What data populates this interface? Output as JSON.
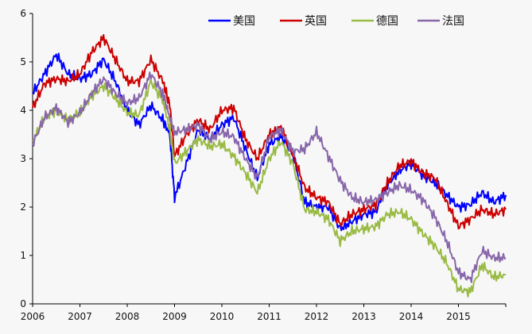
{
  "chart_data": {
    "type": "line",
    "title": "",
    "xlabel": "",
    "ylabel": "",
    "xlim": [
      2006.0,
      2016.0
    ],
    "ylim": [
      0,
      6
    ],
    "grid": false,
    "legend_position": "top-right",
    "x_ticks": [
      "2006",
      "2007",
      "2008",
      "2009",
      "2010",
      "2011",
      "2012",
      "2013",
      "2014",
      "2015"
    ],
    "y_ticks": [
      "0",
      "1",
      "2",
      "3",
      "4",
      "5",
      "6"
    ],
    "x": [
      2006.0,
      2006.25,
      2006.5,
      2006.75,
      2007.0,
      2007.25,
      2007.5,
      2007.75,
      2008.0,
      2008.25,
      2008.5,
      2008.75,
      2008.9,
      2009.0,
      2009.25,
      2009.5,
      2009.75,
      2010.0,
      2010.25,
      2010.5,
      2010.75,
      2011.0,
      2011.25,
      2011.5,
      2011.75,
      2012.0,
      2012.25,
      2012.5,
      2012.75,
      2013.0,
      2013.25,
      2013.5,
      2013.75,
      2014.0,
      2014.25,
      2014.5,
      2014.75,
      2015.0,
      2015.25,
      2015.5,
      2015.75,
      2016.0
    ],
    "series": [
      {
        "name": "美国",
        "color": "#0000ff",
        "values": [
          4.35,
          4.75,
          5.15,
          4.75,
          4.65,
          4.75,
          5.05,
          4.6,
          4.0,
          3.7,
          4.1,
          3.8,
          3.5,
          2.2,
          2.9,
          3.6,
          3.4,
          3.7,
          3.85,
          3.2,
          2.6,
          3.3,
          3.45,
          3.1,
          2.1,
          2.0,
          2.0,
          1.55,
          1.7,
          1.85,
          1.9,
          2.45,
          2.75,
          2.9,
          2.65,
          2.5,
          2.25,
          2.0,
          2.05,
          2.3,
          2.1,
          2.25
        ]
      },
      {
        "name": "英国",
        "color": "#cc0000",
        "values": [
          4.05,
          4.55,
          4.65,
          4.6,
          4.75,
          5.2,
          5.5,
          5.05,
          4.6,
          4.6,
          5.05,
          4.6,
          4.1,
          3.05,
          3.5,
          3.8,
          3.6,
          4.0,
          4.05,
          3.4,
          3.0,
          3.5,
          3.65,
          3.1,
          2.4,
          2.2,
          2.1,
          1.65,
          1.85,
          1.95,
          2.05,
          2.5,
          2.85,
          2.95,
          2.7,
          2.6,
          2.1,
          1.6,
          1.75,
          1.95,
          1.85,
          1.95
        ]
      },
      {
        "name": "德国",
        "color": "#99bb44",
        "values": [
          3.35,
          3.85,
          4.0,
          3.8,
          3.95,
          4.3,
          4.5,
          4.25,
          3.95,
          3.9,
          4.6,
          4.2,
          3.6,
          2.9,
          3.15,
          3.4,
          3.25,
          3.3,
          3.05,
          2.7,
          2.3,
          3.0,
          3.35,
          2.9,
          1.95,
          1.9,
          1.75,
          1.3,
          1.5,
          1.55,
          1.6,
          1.85,
          1.9,
          1.75,
          1.45,
          1.2,
          0.85,
          0.3,
          0.25,
          0.8,
          0.55,
          0.6
        ]
      },
      {
        "name": "法国",
        "color": "#8866aa",
        "values": [
          3.3,
          3.85,
          4.05,
          3.75,
          3.95,
          4.35,
          4.65,
          4.35,
          4.15,
          4.25,
          4.75,
          4.35,
          3.85,
          3.55,
          3.6,
          3.7,
          3.4,
          3.55,
          3.45,
          3.0,
          2.6,
          3.45,
          3.6,
          3.15,
          3.2,
          3.55,
          3.05,
          2.55,
          2.2,
          2.1,
          2.15,
          2.3,
          2.45,
          2.35,
          2.15,
          1.8,
          1.3,
          0.65,
          0.5,
          1.1,
          0.95,
          0.95
        ]
      }
    ]
  }
}
